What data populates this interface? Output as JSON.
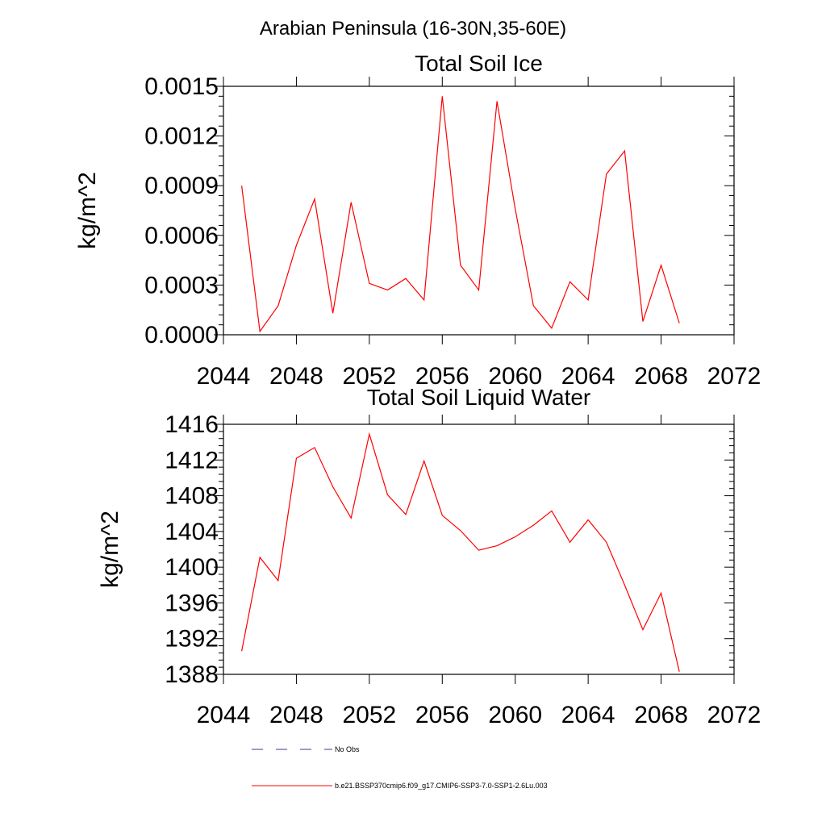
{
  "header": {
    "region_title": "Arabian Peninsula (16-30N,35-60E)"
  },
  "chart_data": [
    {
      "type": "line",
      "title": "Total Soil Ice",
      "ylabel": "kg/m^2",
      "xlabel": "",
      "xlim": [
        2044,
        2072
      ],
      "ylim": [
        0,
        0.0015
      ],
      "xticks": [
        2044,
        2048,
        2052,
        2056,
        2060,
        2064,
        2068,
        2072
      ],
      "yticks": [
        "0.0000",
        "0.0003",
        "0.0006",
        "0.0009",
        "0.0012",
        "0.0015"
      ],
      "yvals": [
        0,
        0.0003,
        0.0006,
        0.0009,
        0.0012,
        0.0015
      ],
      "grid": false,
      "series": [
        {
          "color": "#ff0000",
          "x": [
            2045,
            2046,
            2047,
            2048,
            2049,
            2050,
            2051,
            2052,
            2053,
            2054,
            2055,
            2056,
            2057,
            2058,
            2059,
            2060,
            2061,
            2062,
            2063,
            2064,
            2065,
            2066,
            2067,
            2068,
            2069
          ],
          "y": [
            0.0009,
            2e-05,
            0.000175,
            0.00054,
            0.00082,
            0.00013,
            0.0008,
            0.00031,
            0.00027,
            0.00034,
            0.00021,
            0.00144,
            0.00042,
            0.00027,
            0.00141,
            0.00076,
            0.000175,
            4e-05,
            0.00032,
            0.00021,
            0.00097,
            0.00111,
            8e-05,
            0.00042,
            7e-05
          ]
        }
      ]
    },
    {
      "type": "line",
      "title": "Total Soil Liquid Water",
      "ylabel": "kg/m^2",
      "xlabel": "",
      "xlim": [
        2044,
        2072
      ],
      "ylim": [
        1388,
        1416
      ],
      "xticks": [
        2044,
        2048,
        2052,
        2056,
        2060,
        2064,
        2068,
        2072
      ],
      "yticks": [
        "1388",
        "1392",
        "1396",
        "1400",
        "1404",
        "1408",
        "1412",
        "1416"
      ],
      "yvals": [
        1388,
        1392,
        1396,
        1400,
        1404,
        1408,
        1412,
        1416
      ],
      "grid": false,
      "series": [
        {
          "color": "#ff0000",
          "x": [
            2045,
            2046,
            2047,
            2048,
            2049,
            2050,
            2051,
            2052,
            2053,
            2054,
            2055,
            2056,
            2057,
            2058,
            2059,
            2060,
            2061,
            2062,
            2063,
            2064,
            2065,
            2066,
            2067,
            2068,
            2069
          ],
          "y": [
            1390.6,
            1401.1,
            1398.5,
            1412.2,
            1413.4,
            1409.0,
            1405.5,
            1414.9,
            1408.1,
            1405.9,
            1411.9,
            1405.8,
            1404.1,
            1401.9,
            1402.4,
            1403.4,
            1404.7,
            1406.3,
            1402.8,
            1405.3,
            1402.8,
            1398.0,
            1393.0,
            1397.1,
            1388.3
          ]
        }
      ]
    }
  ],
  "legend": {
    "items": [
      {
        "label": "No Obs",
        "color": "#3b3b8f",
        "style": "dashed"
      },
      {
        "label": "b.e21.BSSP370cmip6.f09_g17.CMIP6-SSP3-7.0-SSP1-2.6Lu.003",
        "color": "#ff0000",
        "style": "solid"
      }
    ]
  }
}
